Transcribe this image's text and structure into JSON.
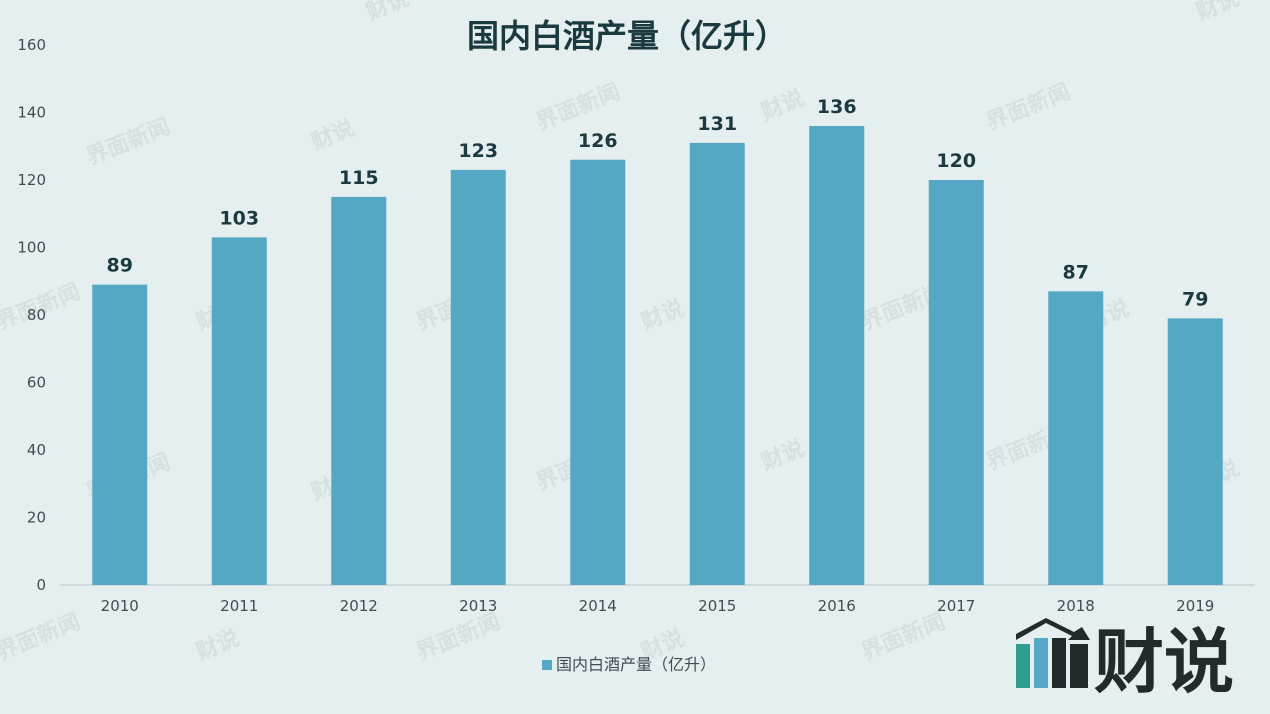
{
  "chart_data": {
    "type": "bar",
    "title": "国内白酒产量（亿升）",
    "categories": [
      "2010",
      "2011",
      "2012",
      "2013",
      "2014",
      "2015",
      "2016",
      "2017",
      "2018",
      "2019"
    ],
    "series": [
      {
        "name": "国内白酒产量（亿升）",
        "values": [
          89,
          103,
          115,
          123,
          126,
          131,
          136,
          120,
          87,
          79
        ],
        "color": "#54a8c4"
      }
    ],
    "xlabel": "",
    "ylabel": "",
    "ylim": [
      0,
      160
    ],
    "yticks": [
      0,
      20,
      40,
      60,
      80,
      100,
      120,
      140,
      160
    ],
    "grid": false,
    "legend": "bottom",
    "data_labels": true
  },
  "watermark": {
    "text_a": "界面新闻",
    "text_b": "财说"
  },
  "logo": {
    "text": "财说",
    "icon": "bar-chart-logo-icon",
    "color_bar_1": "#2f9e8f",
    "color_bar_2": "#54a8c4",
    "color_dark": "#222a2c"
  },
  "colors": {
    "background": "#e6eff0",
    "axis": "#b9c6c9"
  }
}
